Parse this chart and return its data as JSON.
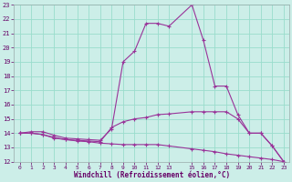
{
  "xlabel": "Windchill (Refroidissement éolien,°C)",
  "background_color": "#cceee8",
  "grid_color": "#99ddcc",
  "line_color": "#993399",
  "xlim": [
    -0.5,
    23.5
  ],
  "ylim": [
    12,
    23
  ],
  "x_ticks": [
    0,
    1,
    2,
    3,
    4,
    5,
    6,
    7,
    8,
    9,
    10,
    11,
    12,
    13,
    15,
    16,
    17,
    18,
    19,
    20,
    21,
    22,
    23
  ],
  "y_ticks": [
    12,
    13,
    14,
    15,
    16,
    17,
    18,
    19,
    20,
    21,
    22,
    23
  ],
  "series1_x": [
    0,
    1,
    2,
    3,
    4,
    5,
    6,
    7,
    8,
    9,
    10,
    11,
    12,
    13,
    15,
    16,
    17,
    18,
    19,
    20,
    21,
    22,
    23
  ],
  "series1_y": [
    14.0,
    14.1,
    14.1,
    13.85,
    13.65,
    13.6,
    13.55,
    13.5,
    14.3,
    19.0,
    19.75,
    21.7,
    21.7,
    21.5,
    23.0,
    20.5,
    17.3,
    17.3,
    15.3,
    14.0,
    14.0,
    13.1,
    12.0
  ],
  "series2_x": [
    0,
    1,
    2,
    3,
    4,
    5,
    6,
    7,
    8,
    9,
    10,
    11,
    12,
    13,
    15,
    16,
    17,
    18,
    19,
    20,
    21,
    22,
    23
  ],
  "series2_y": [
    14.0,
    14.0,
    13.9,
    13.7,
    13.55,
    13.5,
    13.45,
    13.4,
    14.4,
    14.8,
    15.0,
    15.1,
    15.3,
    15.35,
    15.5,
    15.5,
    15.5,
    15.5,
    15.0,
    14.0,
    14.0,
    13.1,
    12.0
  ],
  "series3_x": [
    0,
    1,
    2,
    3,
    4,
    5,
    6,
    7,
    8,
    9,
    10,
    11,
    12,
    13,
    15,
    16,
    17,
    18,
    19,
    20,
    21,
    22,
    23
  ],
  "series3_y": [
    14.0,
    14.0,
    13.9,
    13.65,
    13.55,
    13.45,
    13.4,
    13.3,
    13.25,
    13.2,
    13.2,
    13.2,
    13.2,
    13.1,
    12.9,
    12.8,
    12.7,
    12.55,
    12.45,
    12.35,
    12.25,
    12.15,
    12.0
  ]
}
